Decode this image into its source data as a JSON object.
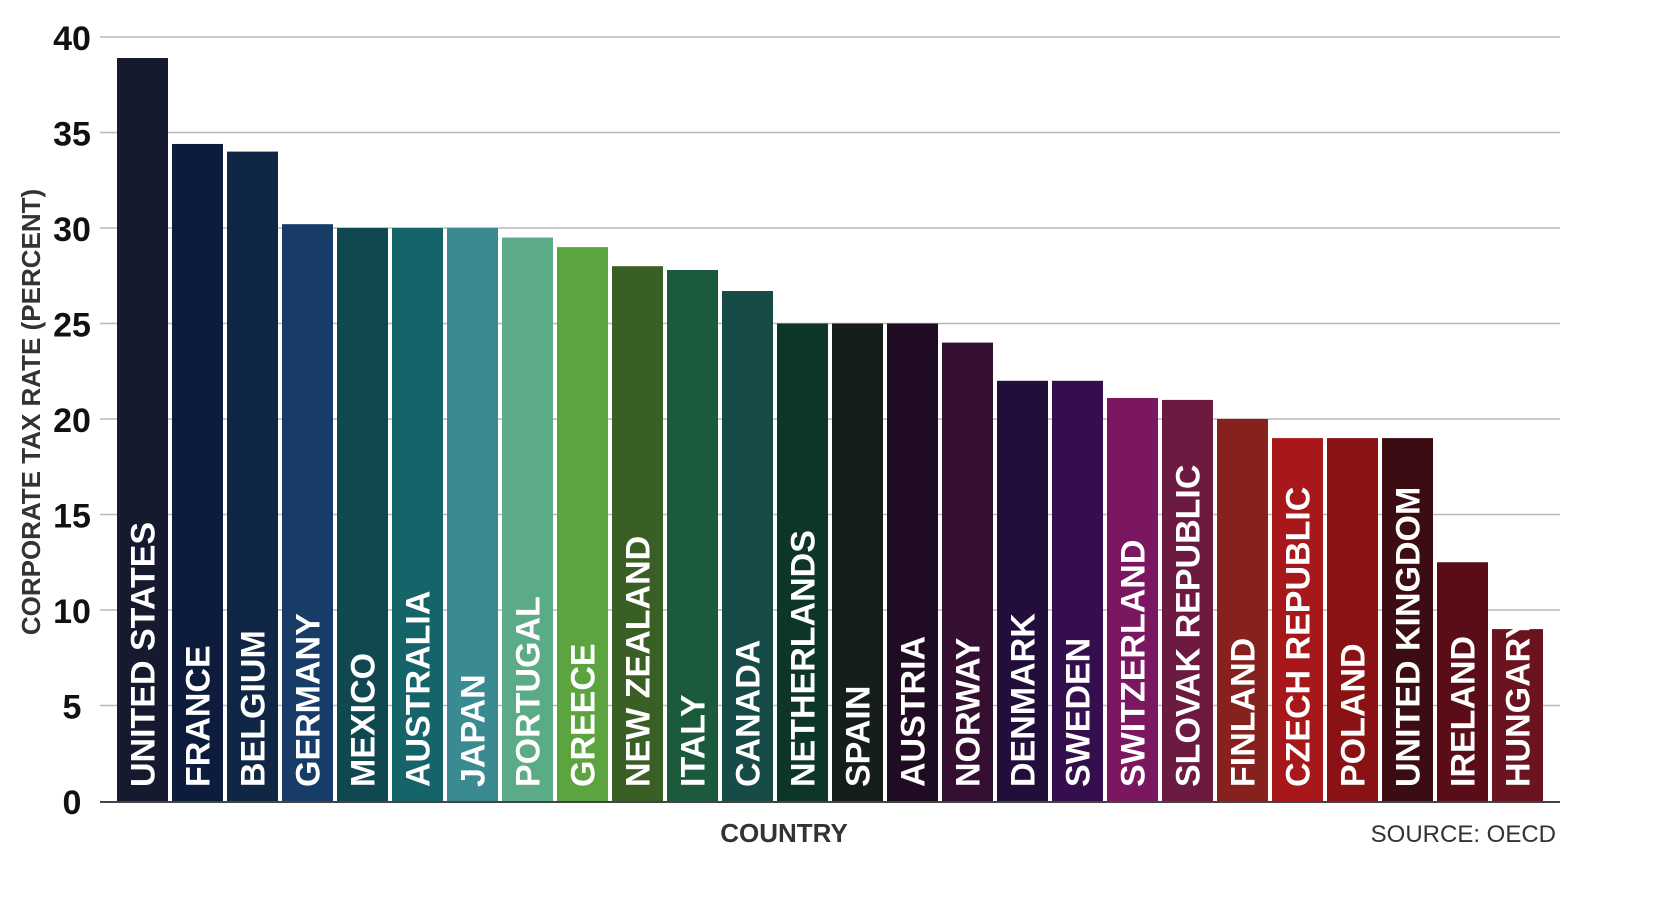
{
  "chart_data": {
    "type": "bar",
    "title": "",
    "xlabel": "COUNTRY",
    "ylabel": "CORPORATE TAX RATE (PERCENT)",
    "ylim": [
      0,
      40
    ],
    "yticks": [
      0,
      5,
      10,
      15,
      20,
      25,
      30,
      35,
      40
    ],
    "grid": true,
    "legend": "none",
    "source": "SOURCE: OECD",
    "categories": [
      "UNITED STATES",
      "FRANCE",
      "BELGIUM",
      "GERMANY",
      "MEXICO",
      "AUSTRALIA",
      "JAPAN",
      "PORTUGAL",
      "GREECE",
      "NEW ZEALAND",
      "ITALY",
      "CANADA",
      "NETHERLANDS",
      "SPAIN",
      "AUSTRIA",
      "NORWAY",
      "DENMARK",
      "SWEDEN",
      "SWITZERLAND",
      "SLOVAK REPUBLIC",
      "FINLAND",
      "CZECH REPUBLIC",
      "POLAND",
      "UNITED KINGDOM",
      "IRELAND",
      "HUNGARY"
    ],
    "values": [
      38.9,
      34.4,
      34.0,
      30.2,
      30.0,
      30.0,
      30.0,
      29.5,
      29.0,
      28.0,
      27.8,
      26.7,
      25.0,
      25.0,
      25.0,
      24.0,
      22.0,
      22.0,
      21.1,
      21.0,
      20.0,
      19.0,
      19.0,
      19.0,
      12.5,
      9.0
    ],
    "colors": [
      "#161a2e",
      "#0d1c3d",
      "#102645",
      "#173c68",
      "#11474f",
      "#146469",
      "#3a8a92",
      "#5aab86",
      "#5ca43f",
      "#3a5f25",
      "#1b5a3a",
      "#174b47",
      "#0d3528",
      "#161e1a",
      "#200c22",
      "#340f31",
      "#230d3b",
      "#350e4d",
      "#7b1760",
      "#6c1a41",
      "#86211e",
      "#a81719",
      "#8a1114",
      "#3b0d12",
      "#5a0c17",
      "#6c1320"
    ]
  }
}
